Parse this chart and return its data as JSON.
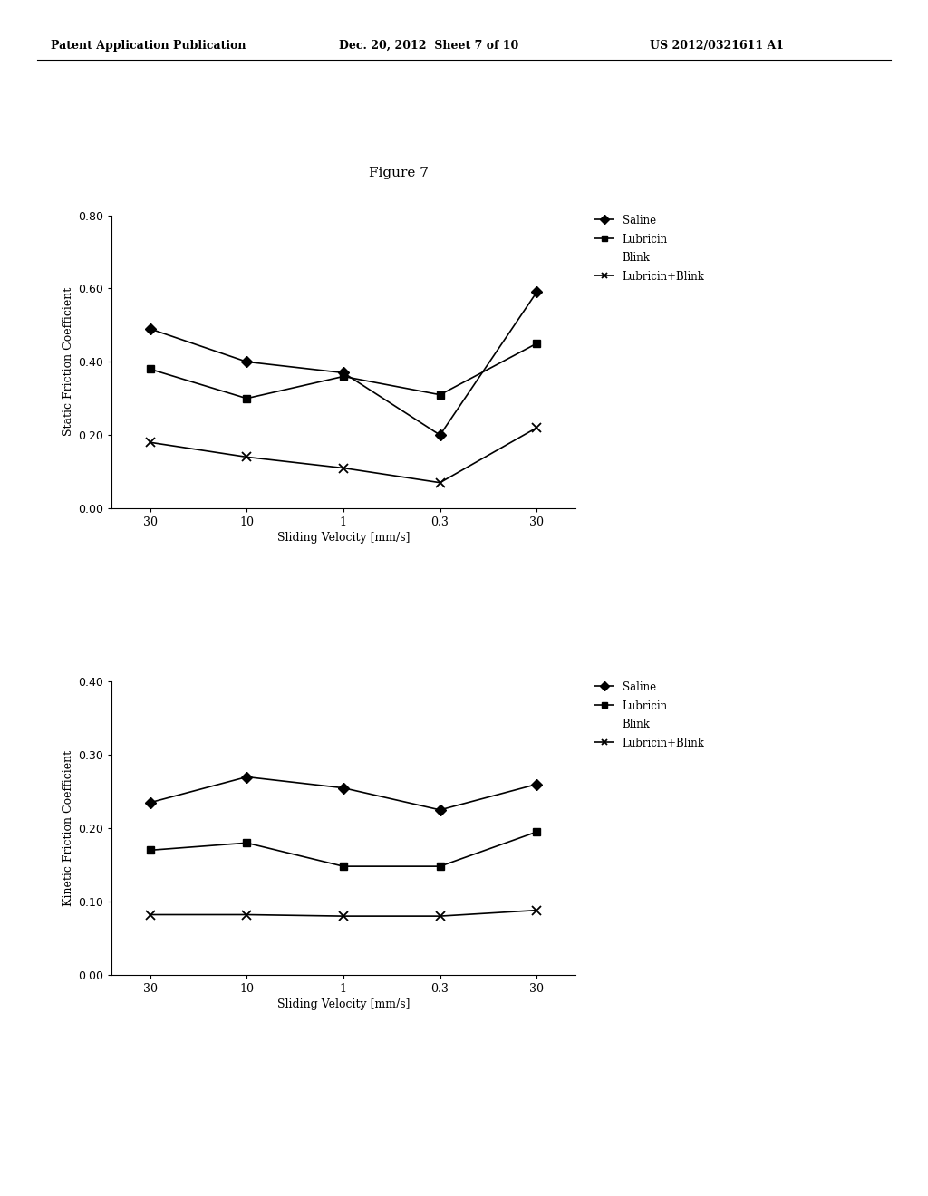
{
  "figure_title": "Figure 7",
  "header_left": "Patent Application Publication",
  "header_center": "Dec. 20, 2012  Sheet 7 of 10",
  "header_right": "US 2012/0321611 A1",
  "x_labels": [
    "30",
    "10",
    "1",
    "0.3",
    "30"
  ],
  "x_positions": [
    0,
    1,
    2,
    3,
    4
  ],
  "top_chart": {
    "ylabel": "Static Friction Coefficient",
    "xlabel": "Sliding Velocity [mm/s]",
    "ylim": [
      0.0,
      0.8
    ],
    "yticks": [
      0.0,
      0.2,
      0.4,
      0.6,
      0.8
    ],
    "saline_values": [
      0.49,
      0.4,
      0.37,
      0.2,
      0.59
    ],
    "lubricin_values": [
      0.38,
      0.3,
      0.36,
      0.31,
      0.45
    ],
    "lubricin_blink_values": [
      0.18,
      0.14,
      0.11,
      0.07,
      0.22
    ]
  },
  "bottom_chart": {
    "ylabel": "Kinetic Friction Coefficient",
    "xlabel": "Sliding Velocity [mm/s]",
    "ylim": [
      0.0,
      0.4
    ],
    "yticks": [
      0.0,
      0.1,
      0.2,
      0.3,
      0.4
    ],
    "saline_values": [
      0.235,
      0.27,
      0.255,
      0.225,
      0.26
    ],
    "lubricin_values": [
      0.17,
      0.18,
      0.148,
      0.148,
      0.195
    ],
    "lubricin_blink_values": [
      0.082,
      0.082,
      0.08,
      0.08,
      0.088
    ]
  },
  "background_color": "#ffffff",
  "text_color": "#000000",
  "line_color": "#555555",
  "marker_size": 6,
  "linewidth": 1.2
}
